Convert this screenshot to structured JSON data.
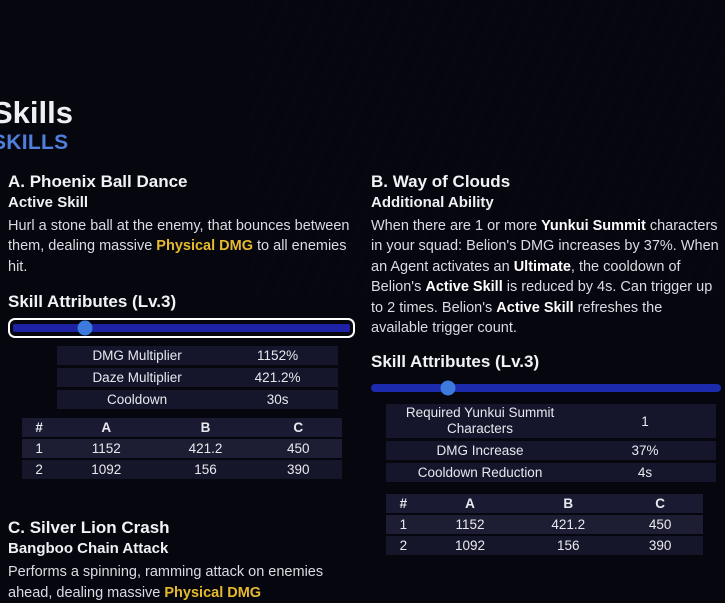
{
  "page": {
    "title": "Skills",
    "subtitle": "SKILLS"
  },
  "colors": {
    "accent_blue": "#4e7fdc",
    "gold": "#e6ba2f",
    "slider_track": "#1d23a4",
    "slider_thumb": "#3c7ade",
    "row_background": "#15152c"
  },
  "left": {
    "skill_a": {
      "heading": "A. Phoenix Ball Dance",
      "type": "Active Skill",
      "desc": [
        {
          "t": "Hurl a stone ball at the enemy, that bounces between them, dealing massive "
        },
        {
          "t": "Physical DMG",
          "s": "gold"
        },
        {
          "t": " to all enemies hit."
        }
      ]
    },
    "attributes": {
      "heading": "Skill Attributes (Lv.3)",
      "slider": {
        "level": 3,
        "percent": 22,
        "focused": true
      },
      "rows": [
        {
          "label": "DMG Multiplier",
          "value": "1152%"
        },
        {
          "label": "Daze Multiplier",
          "value": "421.2%"
        },
        {
          "label": "Cooldown",
          "value": "30s"
        }
      ]
    },
    "num_table": {
      "headers": [
        "#",
        "A",
        "B",
        "C"
      ],
      "rows": [
        [
          "1",
          "1152",
          "421.2",
          "450"
        ],
        [
          "2",
          "1092",
          "156",
          "390"
        ]
      ]
    },
    "skill_c": {
      "heading": "C. Silver Lion Crash",
      "type": "Bangboo Chain Attack",
      "desc": [
        {
          "t": "Performs a spinning, ramming attack on enemies ahead, dealing massive "
        },
        {
          "t": "Physical DMG",
          "s": "gold"
        }
      ]
    }
  },
  "right": {
    "skill_b": {
      "heading": "B. Way of Clouds",
      "type": "Additional Ability",
      "desc": [
        {
          "t": "When there are 1 or more "
        },
        {
          "t": "Yunkui Summit",
          "s": "b"
        },
        {
          "t": " characters in your squad: Belion's DMG increases by 37%. When an Agent activates an "
        },
        {
          "t": "Ultimate",
          "s": "b"
        },
        {
          "t": ", the cooldown of Belion's "
        },
        {
          "t": "Active Skill",
          "s": "b"
        },
        {
          "t": " is reduced by 4s. Can trigger up to 2 times. Belion's "
        },
        {
          "t": "Active Skill",
          "s": "b"
        },
        {
          "t": " refreshes the available trigger count."
        }
      ]
    },
    "attributes": {
      "heading": "Skill Attributes (Lv.3)",
      "slider": {
        "level": 3,
        "percent": 22,
        "focused": false
      },
      "rows": [
        {
          "label": "Required Yunkui Summit Characters",
          "value": "1"
        },
        {
          "label": "DMG Increase",
          "value": "37%"
        },
        {
          "label": "Cooldown Reduction",
          "value": "4s"
        }
      ]
    },
    "num_table": {
      "headers": [
        "#",
        "A",
        "B",
        "C"
      ],
      "rows": [
        [
          "1",
          "1152",
          "421.2",
          "450"
        ],
        [
          "2",
          "1092",
          "156",
          "390"
        ]
      ]
    }
  }
}
